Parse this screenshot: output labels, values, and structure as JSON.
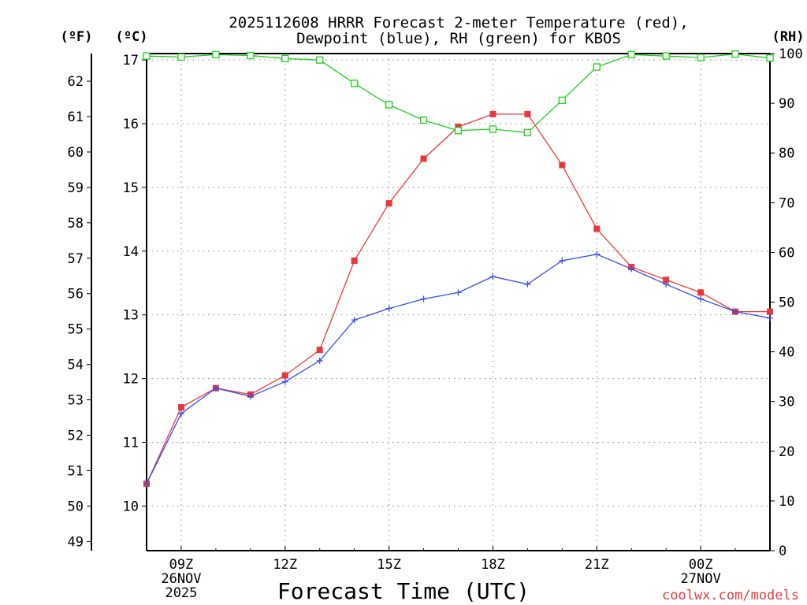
{
  "chart_data": {
    "type": "line",
    "title_line1": "2025112608 HRRR Forecast 2-meter Temperature (red),",
    "title_line2": "Dewpoint (blue), RH (green) for KBOS",
    "xlabel": "Forecast Time (UTC)",
    "left_outer_unit": "(ºF)",
    "left_inner_unit": "(ºC)",
    "right_unit": "(RH)",
    "credit": "coolwx.com/models",
    "x_hours": [
      8,
      9,
      10,
      11,
      12,
      13,
      14,
      15,
      16,
      17,
      18,
      19,
      20,
      21,
      22,
      23,
      24,
      25,
      26
    ],
    "xlim": [
      8,
      26
    ],
    "x_ticks": [
      {
        "x": 9,
        "lines": [
          "09Z",
          "26NOV",
          "2025"
        ]
      },
      {
        "x": 12,
        "lines": [
          "12Z"
        ]
      },
      {
        "x": 15,
        "lines": [
          "15Z"
        ]
      },
      {
        "x": 18,
        "lines": [
          "18Z"
        ]
      },
      {
        "x": 21,
        "lines": [
          "21Z"
        ]
      },
      {
        "x": 24,
        "lines": [
          "00Z",
          "27NOV"
        ]
      }
    ],
    "celsius_axis": {
      "lim": [
        9.3,
        17.1
      ],
      "ticks": [
        10,
        11,
        12,
        13,
        14,
        15,
        16,
        17
      ]
    },
    "fahrenheit_ticks": [
      49,
      50,
      51,
      52,
      53,
      54,
      55,
      56,
      57,
      58,
      59,
      60,
      61,
      62
    ],
    "rh_axis": {
      "lim": [
        0,
        100
      ],
      "ticks": [
        0,
        10,
        20,
        30,
        40,
        50,
        60,
        70,
        80,
        90,
        100
      ]
    },
    "series": [
      {
        "name": "Temperature",
        "unit": "C",
        "color": "#e8383c",
        "marker": "square-filled",
        "values": [
          10.35,
          11.55,
          11.85,
          11.75,
          12.05,
          12.45,
          13.85,
          14.75,
          15.45,
          15.95,
          16.15,
          16.15,
          15.35,
          14.35,
          13.75,
          13.55,
          13.35,
          13.05,
          13.05
        ]
      },
      {
        "name": "Dewpoint",
        "unit": "C",
        "color": "#3c4ee0",
        "marker": "plus",
        "values": [
          10.35,
          11.45,
          11.85,
          11.72,
          11.95,
          12.28,
          12.92,
          13.1,
          13.25,
          13.35,
          13.6,
          13.48,
          13.85,
          13.95,
          13.72,
          13.48,
          13.25,
          13.05,
          12.95
        ]
      },
      {
        "name": "RH",
        "unit": "%",
        "color": "#22cc22",
        "marker": "square-open",
        "values": [
          99.5,
          99.3,
          99.8,
          99.6,
          99.0,
          98.7,
          94.0,
          89.7,
          86.6,
          84.5,
          84.8,
          84.1,
          90.6,
          97.3,
          99.8,
          99.5,
          99.2,
          99.9,
          99.1
        ]
      }
    ]
  },
  "colors": {
    "grid": "#888888",
    "axis": "#000000"
  }
}
